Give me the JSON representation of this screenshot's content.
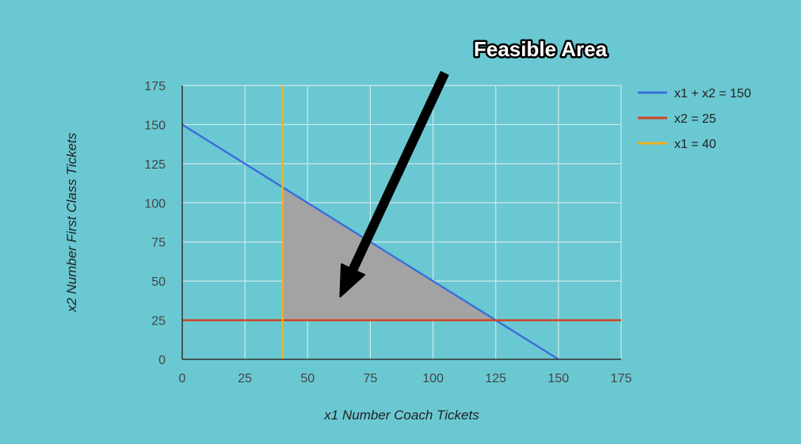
{
  "chart_data": {
    "type": "line",
    "title": "",
    "xlabel": "x1 Number Coach Tickets",
    "ylabel": "x2 Number First Class Tickets",
    "xlim": [
      0,
      175
    ],
    "ylim": [
      0,
      175
    ],
    "xticks": [
      0,
      25,
      50,
      75,
      100,
      125,
      150,
      175
    ],
    "yticks": [
      0,
      25,
      50,
      75,
      100,
      125,
      150,
      175
    ],
    "grid": true,
    "legend_position": "right",
    "series": [
      {
        "name": "x1 + x2 = 150",
        "color": "#3b6fd8",
        "x": [
          0,
          150
        ],
        "y": [
          150,
          0
        ]
      },
      {
        "name": "x2 = 25",
        "color": "#d2451e",
        "x": [
          0,
          175
        ],
        "y": [
          25,
          25
        ]
      },
      {
        "name": "x1 = 40",
        "color": "#f2b21c",
        "x": [
          40,
          40
        ],
        "y": [
          0,
          175
        ]
      }
    ],
    "feasible_region": {
      "color": "#a3a3a3",
      "vertices": [
        [
          40,
          25
        ],
        [
          40,
          110
        ],
        [
          125,
          25
        ]
      ]
    },
    "annotation": {
      "text": "Feasible Area",
      "arrow_to": [
        63,
        40
      ]
    }
  }
}
